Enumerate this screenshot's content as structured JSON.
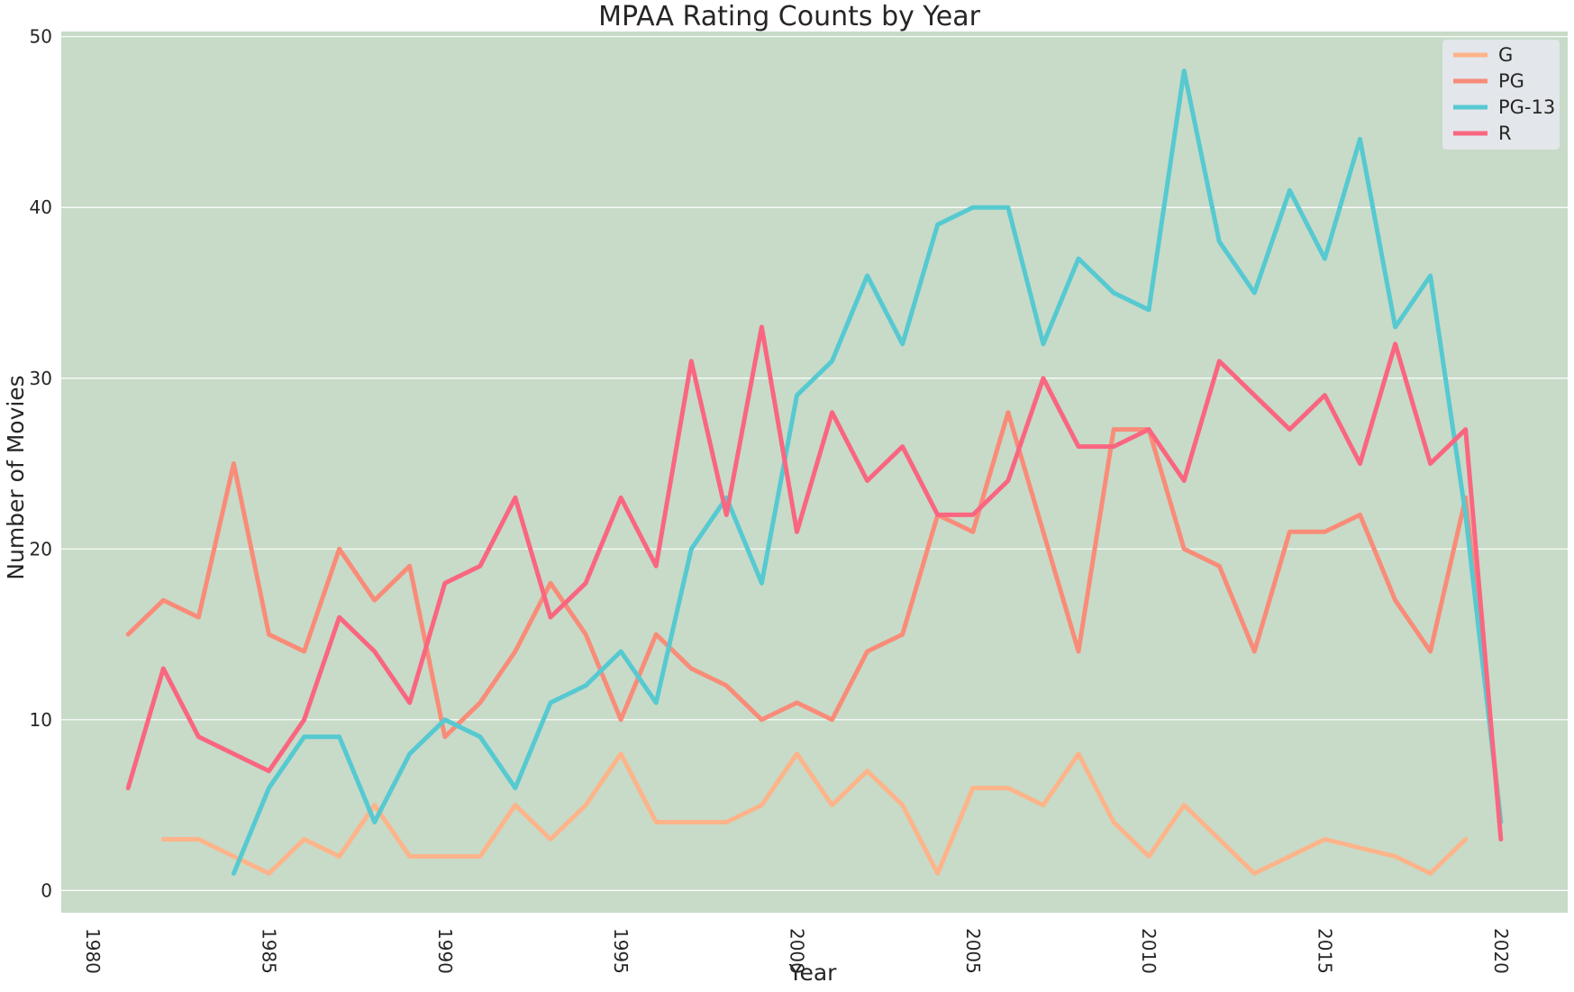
{
  "chart_data": {
    "type": "line",
    "title": "MPAA Rating Counts by Year",
    "xlabel": "Year",
    "ylabel": "Number of Movies",
    "xlim": [
      1979.1,
      2021.9
    ],
    "ylim": [
      -1.3,
      50.3
    ],
    "xticks": [
      1980,
      1985,
      1990,
      1995,
      2000,
      2005,
      2010,
      2015,
      2020
    ],
    "yticks": [
      0,
      10,
      20,
      30,
      40,
      50
    ],
    "grid": true,
    "legend_position": "top-right",
    "colors": {
      "background": "#c7dbc8",
      "grid": "#ffffff",
      "legend_bg": "#e3e6ea"
    },
    "series": [
      {
        "name": "G",
        "color": "#fdb48a",
        "x": [
          1982,
          1983,
          1984,
          1985,
          1986,
          1987,
          1988,
          1989,
          1990,
          1991,
          1992,
          1993,
          1994,
          1995,
          1996,
          1997,
          1998,
          1999,
          2000,
          2001,
          2002,
          2003,
          2004,
          2005,
          2006,
          2007,
          2008,
          2009,
          2010,
          2011,
          2012,
          2013,
          2014,
          2015,
          2016,
          2017,
          2018,
          2019
        ],
        "values": [
          3,
          3,
          2,
          1,
          3,
          2,
          5,
          2,
          2,
          2,
          5,
          3,
          5,
          8,
          4,
          4,
          4,
          5,
          8,
          5,
          7,
          5,
          1,
          6,
          6,
          5,
          8,
          4,
          2,
          5,
          3,
          1,
          2,
          3,
          2.5,
          2,
          1,
          3
        ]
      },
      {
        "name": "PG",
        "color": "#f98c79",
        "x": [
          1981,
          1982,
          1983,
          1984,
          1985,
          1986,
          1987,
          1988,
          1989,
          1990,
          1991,
          1992,
          1993,
          1994,
          1995,
          1996,
          1997,
          1998,
          1999,
          2000,
          2001,
          2002,
          2003,
          2004,
          2005,
          2006,
          2007,
          2008,
          2009,
          2010,
          2011,
          2012,
          2013,
          2014,
          2015,
          2016,
          2017,
          2018,
          2019,
          2020
        ],
        "values": [
          15,
          17,
          16,
          25,
          15,
          14,
          20,
          17,
          19,
          9,
          11,
          14,
          18,
          15,
          10,
          15,
          13,
          12,
          10,
          11,
          10,
          14,
          15,
          22,
          21,
          28,
          21,
          14,
          27,
          27,
          20,
          19,
          14,
          21,
          21,
          22,
          17,
          14,
          23,
          4
        ]
      },
      {
        "name": "PG-13",
        "color": "#56c9d1",
        "x": [
          1984,
          1985,
          1986,
          1987,
          1988,
          1989,
          1990,
          1991,
          1992,
          1993,
          1994,
          1995,
          1996,
          1997,
          1998,
          1999,
          2000,
          2001,
          2002,
          2003,
          2004,
          2005,
          2006,
          2007,
          2008,
          2009,
          2010,
          2011,
          2012,
          2013,
          2014,
          2015,
          2016,
          2017,
          2018,
          2019,
          2020
        ],
        "values": [
          1,
          6,
          9,
          9,
          4,
          8,
          10,
          9,
          6,
          11,
          12,
          14,
          11,
          20,
          23,
          18,
          29,
          31,
          36,
          32,
          39,
          40,
          40,
          32,
          37,
          35,
          34,
          48,
          38,
          35,
          41,
          37,
          44,
          33,
          36,
          22,
          4
        ]
      },
      {
        "name": "R",
        "color": "#fa6680",
        "x": [
          1981,
          1982,
          1983,
          1984,
          1985,
          1986,
          1987,
          1988,
          1989,
          1990,
          1991,
          1992,
          1993,
          1994,
          1995,
          1996,
          1997,
          1998,
          1999,
          2000,
          2001,
          2002,
          2003,
          2004,
          2005,
          2006,
          2007,
          2008,
          2009,
          2010,
          2011,
          2012,
          2013,
          2014,
          2015,
          2016,
          2017,
          2018,
          2019,
          2020
        ],
        "values": [
          6,
          13,
          9,
          8,
          7,
          10,
          16,
          14,
          11,
          18,
          19,
          23,
          16,
          18,
          23,
          19,
          31,
          22,
          33,
          21,
          28,
          24,
          26,
          22,
          22,
          24,
          30,
          26,
          26,
          27,
          24,
          31,
          29,
          27,
          29,
          25,
          32,
          25,
          27,
          3
        ]
      }
    ]
  }
}
